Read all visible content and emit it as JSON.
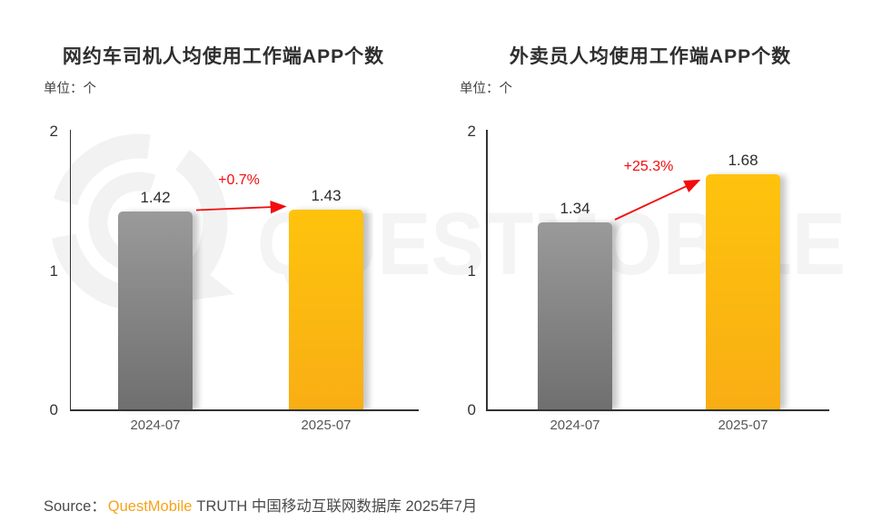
{
  "watermark": {
    "text": "QUESTMOBILE"
  },
  "chart_data": [
    {
      "type": "bar",
      "title": "网约车司机人均使用工作端APP个数",
      "unit": "单位：个",
      "categories": [
        "2024-07",
        "2025-07"
      ],
      "values": [
        1.42,
        1.43
      ],
      "value_labels": [
        "1.42",
        "1.43"
      ],
      "growth_label": "+0.7%",
      "ylim": [
        0,
        2
      ],
      "yticks": [
        "2",
        "1",
        "0"
      ],
      "grid": "off",
      "bar_colors": {
        "2024-07": "#8e8e8e",
        "2025-07": "#fbb612"
      }
    },
    {
      "type": "bar",
      "title": "外卖员人均使用工作端APP个数",
      "unit": "单位：个",
      "categories": [
        "2024-07",
        "2025-07"
      ],
      "values": [
        1.34,
        1.68
      ],
      "value_labels": [
        "1.34",
        "1.68"
      ],
      "growth_label": "+25.3%",
      "ylim": [
        0,
        2
      ],
      "yticks": [
        "2",
        "1",
        "0"
      ],
      "grid": "off",
      "bar_colors": {
        "2024-07": "#8e8e8e",
        "2025-07": "#fbb612"
      }
    }
  ],
  "source": {
    "label": "Source：",
    "brand": "QuestMobile",
    "rest": "TRUTH 中国移动互联网数据库 2025年7月"
  },
  "colors": {
    "growth_red": "#f20d0d",
    "bar_gray": "#8e8e8e",
    "bar_orange": "#fbb612",
    "brand_orange": "#f7a21a",
    "watermark_gray": "#f3f3f3",
    "axis": "#333333"
  }
}
